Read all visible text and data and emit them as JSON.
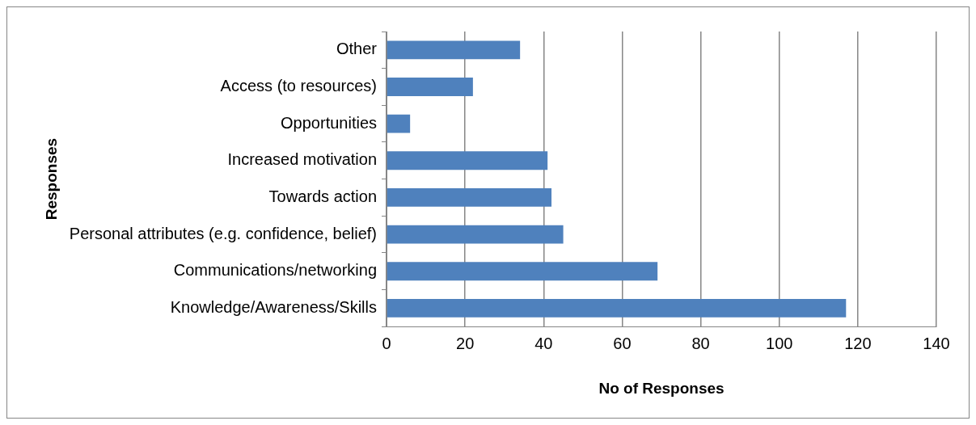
{
  "chart_data": {
    "type": "bar",
    "orientation": "horizontal",
    "xlabel": "No of Responses",
    "ylabel": "Responses",
    "categories": [
      "Other",
      "Access (to resources)",
      "Opportunities",
      "Increased motivation",
      "Towards action",
      "Personal attributes (e.g. confidence, belief)",
      "Communications/networking",
      "Knowledge/Awareness/Skills"
    ],
    "values": [
      34,
      22,
      6,
      41,
      42,
      45,
      69,
      117
    ],
    "color": "#4f81bd",
    "xlim": [
      0,
      140
    ],
    "xticks": [
      0,
      20,
      40,
      60,
      80,
      100,
      120,
      140
    ],
    "grid": "x",
    "legend": false
  }
}
